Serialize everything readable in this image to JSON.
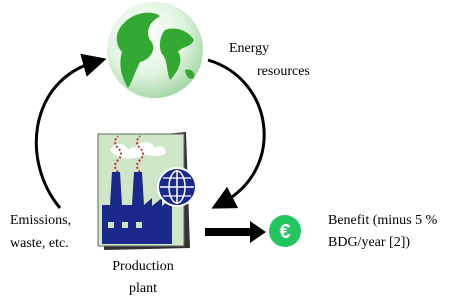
{
  "labels": {
    "energy": [
      "Energy",
      "resources"
    ],
    "emissions": [
      "Emissions,",
      "waste, etc."
    ],
    "plant": [
      "Production",
      "plant"
    ],
    "benefit": [
      "Benefit (minus 5 %",
      "BDG/year [2])"
    ]
  },
  "icons": {
    "euro": "€"
  }
}
